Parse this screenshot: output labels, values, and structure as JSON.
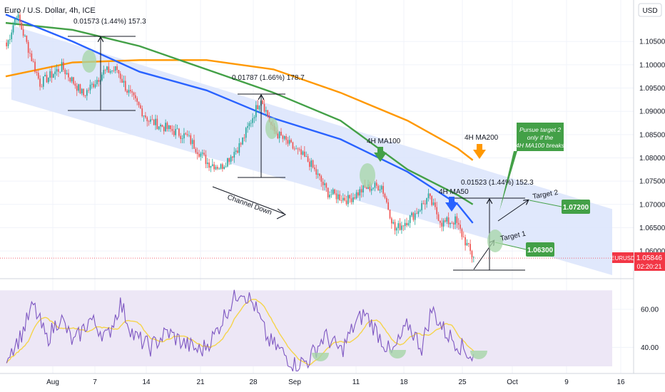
{
  "header": {
    "title": "Euro / U.S. Dollar, 4h, ICE",
    "currency": "USD"
  },
  "price_badge": {
    "symbol": "EURUSD",
    "price": "1.05846",
    "countdown": "02:20:21",
    "color": "#f23645"
  },
  "colors": {
    "channel": "#dbe4fb",
    "rsi_band": "#ede7f6",
    "ma50": "#2962ff",
    "ma100": "#43a047",
    "ma200": "#ff9800",
    "rsi": "#7e57c2",
    "rsi_ma": "#f5d44b",
    "candle_up": "#26a69a",
    "candle_down": "#ef5350",
    "target": "#43a047"
  },
  "chart_data": [
    {
      "type": "candlestick",
      "name": "EURUSD 4h",
      "x_ticks": [
        "Aug",
        "7",
        "14",
        "21",
        "28",
        "Sep",
        "11",
        "18",
        "25",
        "Oct",
        "9",
        "16"
      ],
      "y_ticks": [
        "1.10500",
        "1.10000",
        "1.09500",
        "1.09000",
        "1.08500",
        "1.08000",
        "1.07500",
        "1.07000",
        "1.06500",
        "1.06000"
      ],
      "ylim": [
        1.0545,
        1.113
      ],
      "last_price": 1.05846,
      "anchors": [
        [
          1.104,
          0
        ],
        [
          1.111,
          6
        ],
        [
          1.096,
          20
        ],
        [
          1.0995,
          33
        ],
        [
          1.0935,
          46
        ],
        [
          1.0985,
          58
        ],
        [
          1.099,
          66
        ],
        [
          1.0945,
          72
        ],
        [
          1.088,
          85
        ],
        [
          1.086,
          98
        ],
        [
          1.0845,
          108
        ],
        [
          1.079,
          120
        ],
        [
          1.078,
          128
        ],
        [
          1.083,
          140
        ],
        [
          1.093,
          152
        ],
        [
          1.086,
          159
        ],
        [
          1.0825,
          170
        ],
        [
          1.079,
          181
        ],
        [
          1.0725,
          192
        ],
        [
          1.071,
          204
        ],
        [
          1.0735,
          214
        ],
        [
          1.074,
          224
        ],
        [
          1.0645,
          232
        ],
        [
          1.068,
          244
        ],
        [
          1.0715,
          252
        ],
        [
          1.066,
          260
        ],
        [
          1.0665,
          268
        ],
        [
          1.059,
          278
        ]
      ],
      "moving_averages": [
        {
          "name": "4H MA50",
          "points": [
            [
              0,
              1.1108
            ],
            [
              40,
              1.105
            ],
            [
              80,
              1.0985
            ],
            [
              120,
              1.0945
            ],
            [
              160,
              1.0885
            ],
            [
              200,
              1.084
            ],
            [
              240,
              1.077
            ],
            [
              270,
              1.07
            ],
            [
              279,
              1.066
            ]
          ]
        },
        {
          "name": "4H MA100",
          "points": [
            [
              0,
              1.109
            ],
            [
              40,
              1.1075
            ],
            [
              80,
              1.104
            ],
            [
              120,
              1.099
            ],
            [
              160,
              1.094
            ],
            [
              200,
              1.088
            ],
            [
              240,
              1.0775
            ],
            [
              270,
              1.072
            ],
            [
              279,
              1.07
            ]
          ]
        },
        {
          "name": "4H MA200",
          "points": [
            [
              0,
              1.0975
            ],
            [
              40,
              1.1005
            ],
            [
              80,
              1.101
            ],
            [
              120,
              1.101
            ],
            [
              160,
              1.099
            ],
            [
              200,
              1.094
            ],
            [
              240,
              1.088
            ],
            [
              270,
              1.082
            ],
            [
              279,
              1.0795
            ]
          ]
        }
      ],
      "channel": {
        "upper": [
          [
            1.1085,
            0
          ],
          [
            1.069,
            357
          ]
        ],
        "lower": [
          [
            1.0925,
            0
          ],
          [
            1.0548,
            357
          ]
        ]
      },
      "annotations": [
        {
          "text": "0.01573 (1.44%) 157.3"
        },
        {
          "text": "0.01787 (1.66%) 178.7"
        },
        {
          "text": "0.01523 (1.44%) 152.3"
        },
        {
          "text": "Channel Down"
        },
        {
          "text": "4H MA100"
        },
        {
          "text": "4H MA200"
        },
        {
          "text": "4H MA50"
        },
        {
          "text": "Target 1"
        },
        {
          "text": "Target 2"
        },
        {
          "text": "1.06300"
        },
        {
          "text": "1.07200"
        },
        {
          "text": "Pursue target 2"
        },
        {
          "text": "only if the"
        },
        {
          "text": "4H MA100 breaks"
        }
      ],
      "targets": [
        {
          "name": "Target 1",
          "price": 1.063
        },
        {
          "name": "Target 2",
          "price": 1.072
        }
      ]
    },
    {
      "type": "line",
      "name": "RSI",
      "y_ticks": [
        "60.00",
        "40.00"
      ],
      "ylim": [
        27,
        75
      ],
      "band": [
        30,
        70
      ],
      "anchors": [
        [
          36,
          0
        ],
        [
          45,
          8
        ],
        [
          62,
          16
        ],
        [
          44,
          24
        ],
        [
          56,
          32
        ],
        [
          42,
          40
        ],
        [
          55,
          50
        ],
        [
          45,
          60
        ],
        [
          63,
          68
        ],
        [
          46,
          76
        ],
        [
          40,
          86
        ],
        [
          48,
          96
        ],
        [
          42,
          106
        ],
        [
          38,
          116
        ],
        [
          46,
          124
        ],
        [
          60,
          132
        ],
        [
          71,
          140
        ],
        [
          62,
          148
        ],
        [
          44,
          156
        ],
        [
          38,
          164
        ],
        [
          31,
          172
        ],
        [
          33,
          180
        ],
        [
          46,
          190
        ],
        [
          38,
          200
        ],
        [
          52,
          208
        ],
        [
          58,
          214
        ],
        [
          47,
          222
        ],
        [
          36,
          230
        ],
        [
          52,
          240
        ],
        [
          40,
          248
        ],
        [
          60,
          254
        ],
        [
          48,
          262
        ],
        [
          40,
          272
        ],
        [
          35,
          278
        ]
      ]
    }
  ]
}
